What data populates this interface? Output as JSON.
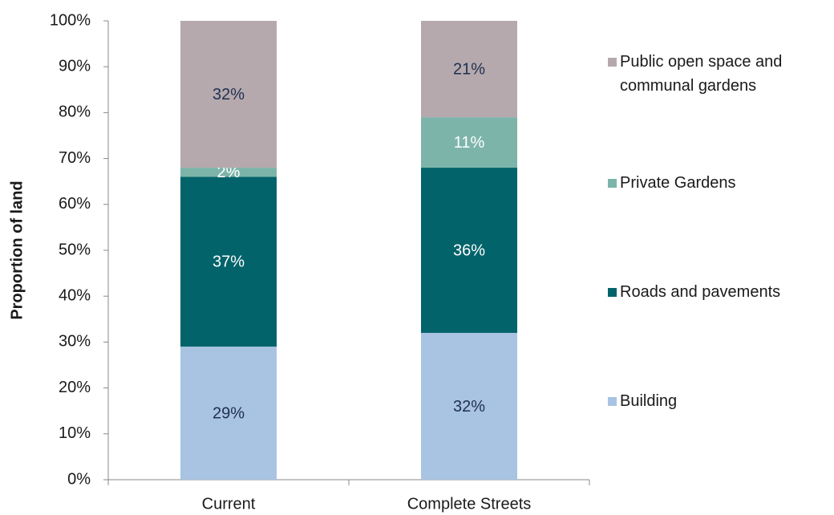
{
  "chart_data": {
    "type": "stacked_bar",
    "ylabel": "Proportion of land",
    "categories": [
      "Current",
      "Complete Streets"
    ],
    "series": [
      {
        "name": "Building",
        "color": "#a9c3e2",
        "label_color": "#1f2f4f",
        "values": [
          29,
          32
        ],
        "value_labels": [
          "29%",
          "32%"
        ]
      },
      {
        "name": "Roads and pavements",
        "color": "#02636b",
        "label_color": "#ffffff",
        "values": [
          37,
          36
        ],
        "value_labels": [
          "37%",
          "36%"
        ]
      },
      {
        "name": "Private Gardens",
        "color": "#7db4a9",
        "label_color": "#ffffff",
        "values": [
          2,
          11
        ],
        "value_labels": [
          "2%",
          "11%"
        ]
      },
      {
        "name": "Public open space and communal gardens",
        "color": "#b5a9ae",
        "label_color": "#1f2f4f",
        "values": [
          32,
          21
        ],
        "value_labels": [
          "32%",
          "21%"
        ]
      }
    ],
    "ylim": [
      0,
      100
    ],
    "yticks": [
      {
        "value": 0,
        "label": "0%"
      },
      {
        "value": 10,
        "label": "10%"
      },
      {
        "value": 20,
        "label": "20%"
      },
      {
        "value": 30,
        "label": "30%"
      },
      {
        "value": 40,
        "label": "40%"
      },
      {
        "value": 50,
        "label": "50%"
      },
      {
        "value": 60,
        "label": "60%"
      },
      {
        "value": 70,
        "label": "70%"
      },
      {
        "value": 80,
        "label": "80%"
      },
      {
        "value": 90,
        "label": "90%"
      },
      {
        "value": 100,
        "label": "100%"
      }
    ],
    "grid": false,
    "legend": "right"
  }
}
